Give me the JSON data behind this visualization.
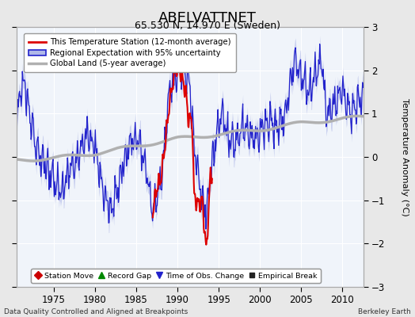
{
  "title": "ABELVATTNET",
  "subtitle": "65.530 N, 14.970 E (Sweden)",
  "ylabel": "Temperature Anomaly (°C)",
  "xlabel_note": "Data Quality Controlled and Aligned at Breakpoints",
  "credit": "Berkeley Earth",
  "ylim": [
    -3,
    3
  ],
  "xlim": [
    1970.5,
    2012.5
  ],
  "xticks": [
    1975,
    1980,
    1985,
    1990,
    1995,
    2000,
    2005,
    2010
  ],
  "yticks": [
    -3,
    -2,
    -1,
    0,
    1,
    2,
    3
  ],
  "fig_bg_color": "#e8e8e8",
  "plot_bg_color": "#f0f4fa",
  "regional_color": "#2222cc",
  "regional_fill_color": "#b0b8e8",
  "station_color": "#dd0000",
  "global_color": "#b0b0b0",
  "legend1_labels": [
    "This Temperature Station (12-month average)",
    "Regional Expectation with 95% uncertainty",
    "Global Land (5-year average)"
  ],
  "legend2_labels": [
    "Station Move",
    "Record Gap",
    "Time of Obs. Change",
    "Empirical Break"
  ],
  "regional_kp": {
    "years": [
      1970,
      1971,
      1971.5,
      1972,
      1973,
      1974,
      1975,
      1976,
      1977,
      1978,
      1979,
      1980,
      1981,
      1982,
      1983,
      1984,
      1985,
      1986,
      1987,
      1988,
      1989,
      1989.5,
      1990,
      1990.5,
      1991,
      1991.5,
      1992,
      1993,
      1993.5,
      1994,
      1995,
      1995.5,
      1996,
      1997,
      1998,
      1999,
      2000,
      2001,
      2002,
      2003,
      2004,
      2004.5,
      2005,
      2006,
      2007,
      2007.5,
      2008,
      2009,
      2010,
      2011,
      2012,
      2012.5
    ],
    "vals": [
      0.1,
      1.5,
      1.7,
      1.0,
      0.2,
      -0.2,
      -0.5,
      -0.8,
      -0.3,
      0.0,
      0.6,
      0.2,
      -0.8,
      -1.3,
      -0.5,
      0.2,
      0.5,
      -0.1,
      -1.2,
      -0.6,
      1.5,
      1.8,
      2.0,
      2.1,
      1.9,
      1.6,
      0.3,
      -1.1,
      -1.3,
      -0.4,
      0.8,
      1.0,
      0.5,
      0.3,
      0.7,
      0.4,
      0.6,
      0.8,
      0.7,
      0.9,
      2.1,
      2.2,
      1.8,
      1.5,
      2.1,
      2.2,
      1.0,
      1.2,
      1.5,
      1.0,
      1.3,
      1.4
    ]
  },
  "station_kp": {
    "years": [
      1987.0,
      1987.5,
      1988.0,
      1988.5,
      1989.0,
      1989.5,
      1990.0,
      1990.3,
      1990.6,
      1991.0,
      1991.3,
      1991.8,
      1992.0,
      1992.5,
      1993.0,
      1993.5,
      1994.0
    ],
    "vals": [
      -1.3,
      -0.7,
      -0.5,
      0.3,
      1.2,
      1.8,
      2.1,
      2.0,
      1.8,
      1.5,
      0.9,
      0.8,
      -0.9,
      -1.1,
      -1.0,
      -2.2,
      -0.4
    ]
  },
  "global_kp": {
    "years": [
      1970,
      1975,
      1980,
      1985,
      1990,
      1995,
      2000,
      2005,
      2010,
      2012.5
    ],
    "vals": [
      -0.08,
      -0.03,
      0.08,
      0.25,
      0.42,
      0.52,
      0.63,
      0.78,
      0.88,
      0.92
    ]
  }
}
